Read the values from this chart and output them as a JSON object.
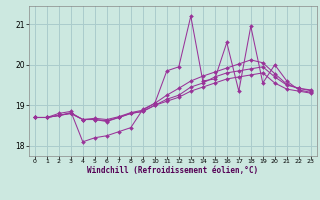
{
  "title": "",
  "xlabel": "Windchill (Refroidissement éolien,°C)",
  "ylabel": "",
  "background_color": "#cce8e0",
  "grid_color": "#aacccc",
  "line_color": "#993399",
  "xlim": [
    -0.5,
    23.5
  ],
  "ylim": [
    17.75,
    21.45
  ],
  "yticks": [
    18,
    19,
    20,
    21
  ],
  "xticks": [
    0,
    1,
    2,
    3,
    4,
    5,
    6,
    7,
    8,
    9,
    10,
    11,
    12,
    13,
    14,
    15,
    16,
    17,
    18,
    19,
    20,
    21,
    22,
    23
  ],
  "hours": [
    0,
    1,
    2,
    3,
    4,
    5,
    6,
    7,
    8,
    9,
    10,
    11,
    12,
    13,
    14,
    15,
    16,
    17,
    18,
    19,
    20,
    21,
    22,
    23
  ],
  "line1": [
    18.7,
    18.7,
    18.75,
    18.8,
    18.65,
    18.65,
    18.6,
    18.7,
    18.8,
    18.85,
    19.0,
    19.1,
    19.2,
    19.35,
    19.45,
    19.55,
    19.65,
    19.7,
    19.75,
    19.8,
    19.55,
    19.4,
    19.35,
    19.3
  ],
  "line2": [
    18.7,
    18.7,
    18.75,
    18.8,
    18.65,
    18.65,
    18.62,
    18.7,
    18.8,
    18.85,
    19.0,
    19.15,
    19.25,
    19.45,
    19.55,
    19.7,
    19.8,
    19.85,
    19.9,
    19.95,
    19.7,
    19.5,
    19.42,
    19.38
  ],
  "line3": [
    18.7,
    18.7,
    18.8,
    18.85,
    18.1,
    18.2,
    18.25,
    18.35,
    18.45,
    18.9,
    19.05,
    19.85,
    19.95,
    21.2,
    19.6,
    19.65,
    20.55,
    19.35,
    20.95,
    19.55,
    20.0,
    19.6,
    19.38,
    19.32
  ],
  "line4": [
    18.7,
    18.7,
    18.75,
    18.82,
    18.65,
    18.68,
    18.65,
    18.72,
    18.82,
    18.88,
    19.05,
    19.25,
    19.42,
    19.6,
    19.72,
    19.82,
    19.92,
    20.02,
    20.12,
    20.05,
    19.78,
    19.52,
    19.42,
    19.36
  ]
}
